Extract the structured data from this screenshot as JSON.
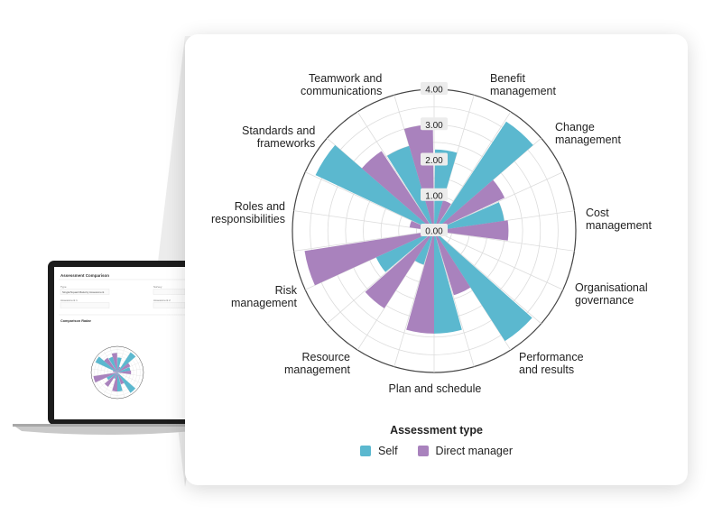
{
  "thumbnail": {
    "title": "Assessment Comparison",
    "field1_label": "Type",
    "field1_value": "Single/Squad Maturity Assessment",
    "field2_label": "Survey",
    "field3_label": "Assessment 1",
    "field4_label": "Assessment 2",
    "section": "Comparison Radar"
  },
  "chart_data": {
    "type": "radial-bar",
    "title": "",
    "categories": [
      "Benefit management",
      "Change management",
      "Cost management",
      "Organisational governance",
      "Performance and results",
      "Plan and schedule",
      "Resource management",
      "Risk management",
      "Roles and responsibilities",
      "Standards and frameworks",
      "Teamwork and communications"
    ],
    "label_lines": [
      [
        "Benefit",
        "management"
      ],
      [
        "Change",
        "management"
      ],
      [
        "Cost",
        "management"
      ],
      [
        "Organisational",
        "governance"
      ],
      [
        "Performance",
        "and  results"
      ],
      [
        "Plan and schedule"
      ],
      [
        "Resource",
        "management"
      ],
      [
        "Risk",
        "management"
      ],
      [
        "Roles and",
        "responsibilities"
      ],
      [
        "Standards and",
        "frameworks"
      ],
      [
        "Teamwork and",
        "communications"
      ]
    ],
    "series": [
      {
        "name": "Self",
        "color": "#5bb8cf",
        "values": [
          2.3,
          3.7,
          2.0,
          0.1,
          3.7,
          2.9,
          1.0,
          1.8,
          0.2,
          3.7,
          2.5
        ]
      },
      {
        "name": "Direct manager",
        "color": "#a982bd",
        "values": [
          0.9,
          2.2,
          2.1,
          0.1,
          1.9,
          2.9,
          2.6,
          3.7,
          0.7,
          2.7,
          3.0
        ]
      }
    ],
    "ylim": [
      0,
      4
    ],
    "ticks": [
      "0.00",
      "1.00",
      "2.00",
      "3.00",
      "4.00"
    ],
    "legend_title": "Assessment type",
    "legend_position": "bottom"
  }
}
